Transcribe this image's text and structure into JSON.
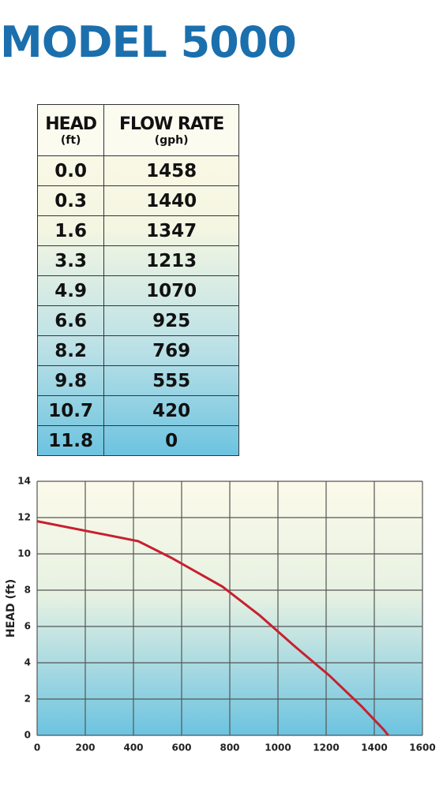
{
  "title": "MODEL 5000",
  "table": {
    "header": [
      {
        "label": "HEAD",
        "unit": "(ft)"
      },
      {
        "label": "FLOW RATE",
        "unit": "(gph)"
      }
    ],
    "rows": [
      [
        "0.0",
        "1458"
      ],
      [
        "0.3",
        "1440"
      ],
      [
        "1.6",
        "1347"
      ],
      [
        "3.3",
        "1213"
      ],
      [
        "4.9",
        "1070"
      ],
      [
        "6.6",
        "925"
      ],
      [
        "8.2",
        "769"
      ],
      [
        "9.8",
        "555"
      ],
      [
        "10.7",
        "420"
      ],
      [
        "11.8",
        "0"
      ]
    ]
  },
  "chart_data": {
    "type": "line",
    "y_label": "HEAD (ft)",
    "x": [
      0,
      420,
      555,
      769,
      925,
      1070,
      1213,
      1347,
      1440,
      1458
    ],
    "series": [
      {
        "name": "HEAD",
        "color": "#c8202f",
        "values": [
          11.8,
          10.7,
          9.8,
          8.2,
          6.6,
          4.9,
          3.3,
          1.6,
          0.3,
          0
        ]
      }
    ],
    "xlim": [
      0,
      1600
    ],
    "xticks": [
      0,
      200,
      400,
      600,
      800,
      1000,
      1200,
      1400,
      1600
    ],
    "ylim": [
      0,
      14
    ],
    "yticks": [
      0,
      2,
      4,
      6,
      8,
      10,
      12,
      14
    ],
    "grid": true
  }
}
